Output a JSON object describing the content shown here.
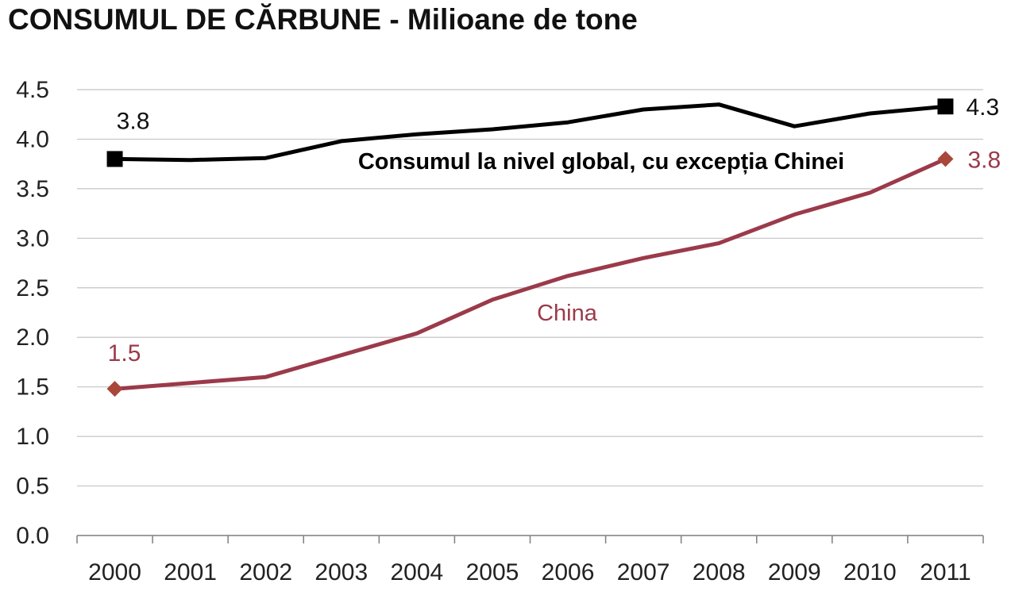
{
  "chart_data": {
    "type": "line",
    "title": "CONSUMUL DE CĂRBUNE - Milioane de tone",
    "xlabel": "",
    "ylabel": "",
    "ylim": [
      0,
      4.5
    ],
    "y_ticks": [
      "0.0",
      "0.5",
      "1.0",
      "1.5",
      "2.0",
      "2.5",
      "3.0",
      "3.5",
      "4.0",
      "4.5"
    ],
    "grid": "horizontal",
    "categories": [
      "2000",
      "2001",
      "2002",
      "2003",
      "2004",
      "2005",
      "2006",
      "2007",
      "2008",
      "2009",
      "2010",
      "2011"
    ],
    "series": [
      {
        "name": "Consumul la nivel global, cu excepția Chinei",
        "color": "#000000",
        "marker": "square",
        "values": [
          3.8,
          3.79,
          3.81,
          3.98,
          4.05,
          4.1,
          4.17,
          4.3,
          4.35,
          4.13,
          4.26,
          4.33
        ],
        "start_label": "3.8",
        "end_label": "4.3"
      },
      {
        "name": "China",
        "color": "#9b3a4a",
        "marker": "diamond",
        "marker_color": "#a9473a",
        "values": [
          1.48,
          1.54,
          1.6,
          1.82,
          2.04,
          2.38,
          2.62,
          2.8,
          2.95,
          3.24,
          3.46,
          3.8
        ],
        "start_label": "1.5",
        "end_label": "3.8"
      }
    ]
  }
}
